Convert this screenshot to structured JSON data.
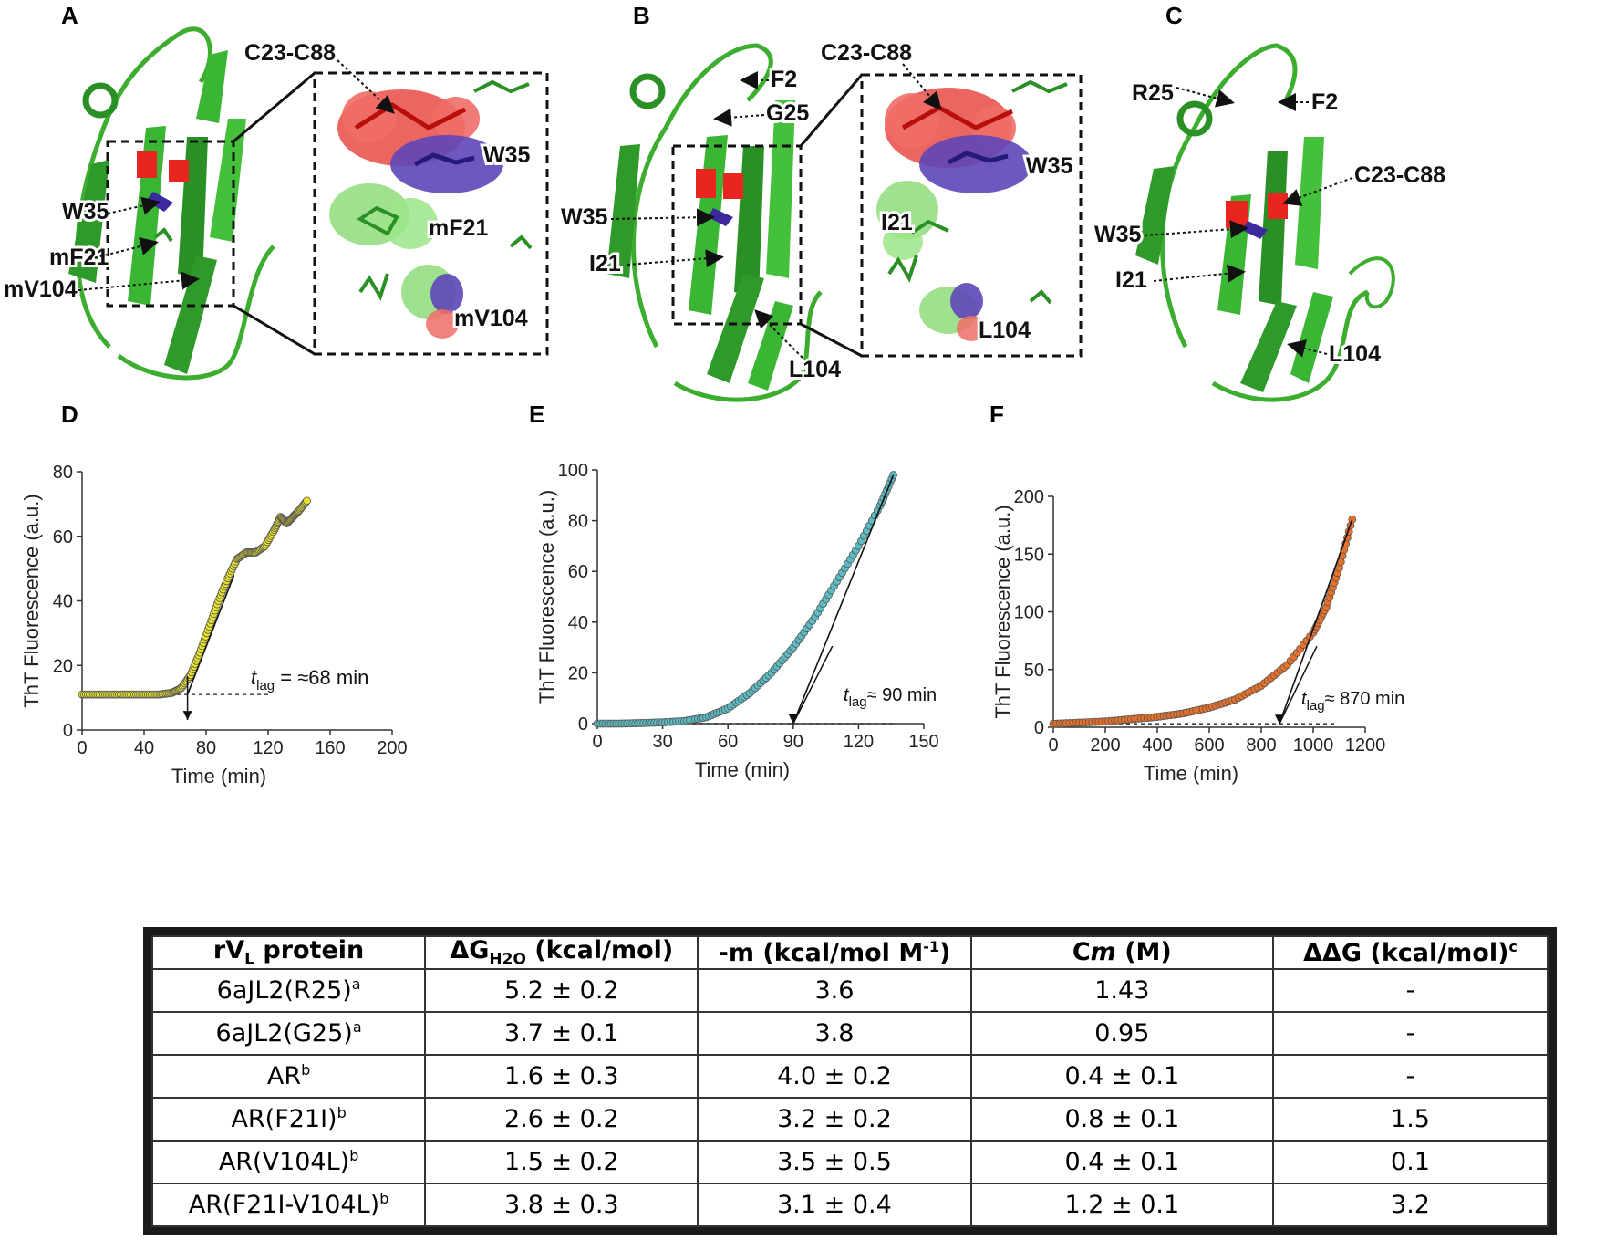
{
  "panels": {
    "A": {
      "letter": "A",
      "labels": {
        "c23_c88": "C23-C88",
        "w35": "W35",
        "mf21": "mF21",
        "mv104": "mV104",
        "inset_w35": "W35",
        "inset_mf21": "mF21",
        "inset_mv104": "mV104"
      }
    },
    "B": {
      "letter": "B",
      "labels": {
        "c23_c88": "C23-C88",
        "f2": "F2",
        "g25": "G25",
        "w35": "W35",
        "i21": "I21",
        "l104": "L104",
        "inset_w35": "W35",
        "inset_i21": "I21",
        "inset_l104": "L104"
      }
    },
    "C": {
      "letter": "C",
      "labels": {
        "r25": "R25",
        "f2": "F2",
        "c23_c88": "C23-C88",
        "w35": "W35",
        "i21": "I21",
        "l104": "L104"
      }
    },
    "D": {
      "letter": "D"
    },
    "E": {
      "letter": "E"
    },
    "F": {
      "letter": "F"
    }
  },
  "chart_data": [
    {
      "panel": "D",
      "type": "scatter",
      "xlabel": "Time (min)",
      "ylabel": "ThT Fluorescence (a.u.)",
      "xlim": [
        0,
        200
      ],
      "ylim": [
        0,
        80
      ],
      "xticks": [
        0,
        40,
        80,
        120,
        160,
        200
      ],
      "yticks": [
        0,
        20,
        40,
        60,
        80
      ],
      "marker_color": "#e8e32a",
      "annotation": {
        "t": "t",
        "sub": "lag",
        "rest": " = ≈68 min"
      },
      "lag_time": 68,
      "baseline": 11,
      "series": [
        {
          "name": "D",
          "points": [
            [
              0,
              11
            ],
            [
              10,
              11
            ],
            [
              20,
              11
            ],
            [
              30,
              11
            ],
            [
              40,
              11
            ],
            [
              50,
              11
            ],
            [
              58,
              11.5
            ],
            [
              64,
              13
            ],
            [
              70,
              17
            ],
            [
              76,
              24
            ],
            [
              82,
              32
            ],
            [
              88,
              40
            ],
            [
              94,
              47
            ],
            [
              100,
              53
            ],
            [
              106,
              55
            ],
            [
              112,
              55
            ],
            [
              118,
              57
            ],
            [
              124,
              62
            ],
            [
              128,
              66
            ],
            [
              132,
              64
            ],
            [
              136,
              66
            ],
            [
              140,
              68
            ],
            [
              145,
              71
            ]
          ]
        }
      ]
    },
    {
      "panel": "E",
      "type": "scatter",
      "xlabel": "Time (min)",
      "ylabel": "ThT Fluorescence (a.u.)",
      "xlim": [
        0,
        150
      ],
      "ylim": [
        0,
        100
      ],
      "xticks": [
        0,
        30,
        60,
        90,
        120,
        150
      ],
      "yticks": [
        0,
        20,
        40,
        60,
        80,
        100
      ],
      "marker_color": "#5bbcc4",
      "annotation": {
        "t": "t",
        "sub": "lag",
        "rest": "≈ 90 min"
      },
      "lag_time": 90,
      "baseline": 0,
      "series": [
        {
          "name": "E",
          "points": [
            [
              0,
              0
            ],
            [
              10,
              0
            ],
            [
              20,
              0.2
            ],
            [
              30,
              0.5
            ],
            [
              40,
              1
            ],
            [
              50,
              2.5
            ],
            [
              60,
              6
            ],
            [
              70,
              12
            ],
            [
              80,
              20
            ],
            [
              90,
              30
            ],
            [
              100,
              42
            ],
            [
              110,
              56
            ],
            [
              120,
              70
            ],
            [
              130,
              86
            ],
            [
              136,
              98
            ]
          ]
        }
      ]
    },
    {
      "panel": "F",
      "type": "scatter",
      "xlabel": "Time (min)",
      "ylabel": "ThT Fluorescence (a.u.)",
      "xlim": [
        0,
        1200
      ],
      "ylim": [
        0,
        200
      ],
      "xticks": [
        0,
        200,
        400,
        600,
        800,
        1000,
        1200
      ],
      "yticks": [
        0,
        50,
        100,
        150,
        200
      ],
      "marker_color": "#e8712a",
      "annotation": {
        "t": "t",
        "sub": "lag",
        "rest": "≈ 870 min"
      },
      "lag_time": 870,
      "baseline": 3,
      "series": [
        {
          "name": "F",
          "points": [
            [
              0,
              3
            ],
            [
              100,
              4
            ],
            [
              200,
              5
            ],
            [
              300,
              7
            ],
            [
              400,
              9
            ],
            [
              500,
              12
            ],
            [
              600,
              17
            ],
            [
              700,
              24
            ],
            [
              800,
              36
            ],
            [
              900,
              54
            ],
            [
              1000,
              82
            ],
            [
              1050,
              104
            ],
            [
              1100,
              138
            ],
            [
              1150,
              180
            ]
          ]
        }
      ]
    }
  ],
  "table": {
    "headers": [
      {
        "main": "rV",
        "sub": "L",
        "rest": " protein"
      },
      {
        "main": "ΔG",
        "sub": "H2O",
        "rest": " (kcal/mol)"
      },
      {
        "main": "-m (kcal/mol M",
        "sup": "-1",
        "rest": ")"
      },
      {
        "main": "C",
        "ital": "m",
        "rest": " (M)"
      },
      {
        "main": "ΔΔG (kcal/mol)",
        "sup": "c",
        "rest": ""
      }
    ],
    "rows": [
      {
        "protein": "6aJL2(R25)",
        "note": "a",
        "dg": "5.2 ± 0.2",
        "m": "3.6",
        "cm": "1.43",
        "ddg": "-"
      },
      {
        "protein": "6aJL2(G25)",
        "note": "a",
        "dg": "3.7 ± 0.1",
        "m": "3.8",
        "cm": "0.95",
        "ddg": "-"
      },
      {
        "protein": "AR",
        "note": "b",
        "dg": "1.6 ± 0.3",
        "m": "4.0 ± 0.2",
        "cm": "0.4 ± 0.1",
        "ddg": "-"
      },
      {
        "protein": "AR(F21I)",
        "note": "b",
        "dg": "2.6 ± 0.2",
        "m": "3.2 ± 0.2",
        "cm": "0.8 ± 0.1",
        "ddg": "1.5"
      },
      {
        "protein": "AR(V104L)",
        "note": "b",
        "dg": "1.5 ± 0.2",
        "m": "3.5 ± 0.5",
        "cm": "0.4 ± 0.1",
        "ddg": "0.1"
      },
      {
        "protein": "AR(F21I-V104L)",
        "note": "b",
        "dg": "3.8 ± 0.3",
        "m": "3.1 ± 0.4",
        "cm": "1.2 ± 0.1",
        "ddg": "3.2"
      }
    ]
  }
}
